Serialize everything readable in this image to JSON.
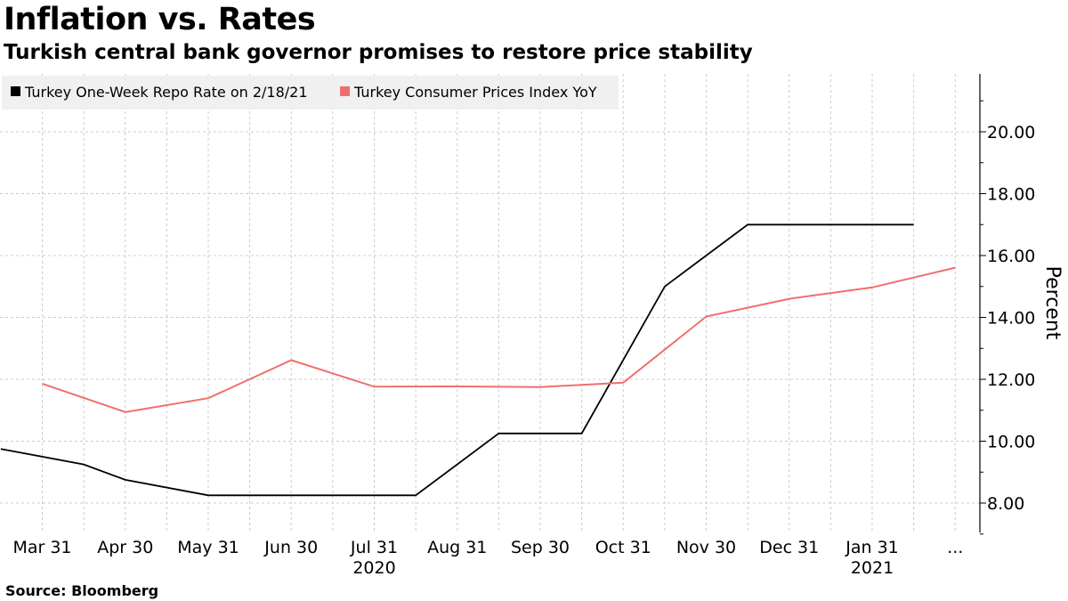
{
  "header": {
    "title": "Inflation vs. Rates",
    "subtitle": "Turkish central bank governor promises to restore price stability"
  },
  "footer": {
    "source": "Source: Bloomberg"
  },
  "colors": {
    "repo": "#000000",
    "cpi": "#ef6f6c",
    "grid": "#cccccc",
    "legend_bg": "#f0f0f0"
  },
  "chart_data": {
    "type": "line",
    "title": "Inflation vs. Rates",
    "subtitle": "Turkish central bank governor promises to restore price stability",
    "ylabel": "Percent",
    "xlabel": "",
    "ylim": [
      7.0,
      22.0
    ],
    "y_ticks": [
      8,
      10,
      12,
      14,
      16,
      18,
      20
    ],
    "y_tick_labels": [
      "8.00",
      "10.00",
      "12.00",
      "14.00",
      "16.00",
      "18.00",
      "20.00"
    ],
    "x_tick_labels": [
      "Mar 31",
      "Apr 30",
      "May 31",
      "Jun 30",
      "Jul 31",
      "Aug 31",
      "Sep 30",
      "Oct 31",
      "Nov 30",
      "Dec 31",
      "Jan 31",
      "..."
    ],
    "x_year_labels": [
      {
        "label": "2020",
        "at_month": 4
      },
      {
        "label": "2021",
        "at_month": 10
      }
    ],
    "x_range_months": [
      -0.5,
      11.0
    ],
    "legend_position": "top-left",
    "grid": true,
    "series": [
      {
        "name": "Turkey One-Week Repo Rate on 2/18/21",
        "color": "#000000",
        "points": [
          {
            "m": -0.5,
            "v": 9.75
          },
          {
            "m": 0.5,
            "v": 9.25
          },
          {
            "m": 1.0,
            "v": 8.75
          },
          {
            "m": 2.0,
            "v": 8.25
          },
          {
            "m": 3.0,
            "v": 8.25
          },
          {
            "m": 4.0,
            "v": 8.25
          },
          {
            "m": 4.5,
            "v": 8.25
          },
          {
            "m": 5.5,
            "v": 10.25
          },
          {
            "m": 6.5,
            "v": 10.25
          },
          {
            "m": 7.5,
            "v": 15.0
          },
          {
            "m": 8.0,
            "v": 16.0
          },
          {
            "m": 8.5,
            "v": 17.0
          },
          {
            "m": 9.5,
            "v": 17.0
          },
          {
            "m": 10.5,
            "v": 17.0
          }
        ]
      },
      {
        "name": "Turkey Consumer Prices Index YoY",
        "color": "#ef6f6c",
        "points": [
          {
            "m": 0,
            "v": 11.86
          },
          {
            "m": 1,
            "v": 10.94
          },
          {
            "m": 2,
            "v": 11.39
          },
          {
            "m": 3,
            "v": 12.62
          },
          {
            "m": 4,
            "v": 11.76
          },
          {
            "m": 5,
            "v": 11.77
          },
          {
            "m": 6,
            "v": 11.75
          },
          {
            "m": 7,
            "v": 11.89
          },
          {
            "m": 8,
            "v": 14.03
          },
          {
            "m": 9,
            "v": 14.6
          },
          {
            "m": 10,
            "v": 14.97
          },
          {
            "m": 11,
            "v": 15.61
          }
        ]
      }
    ]
  }
}
